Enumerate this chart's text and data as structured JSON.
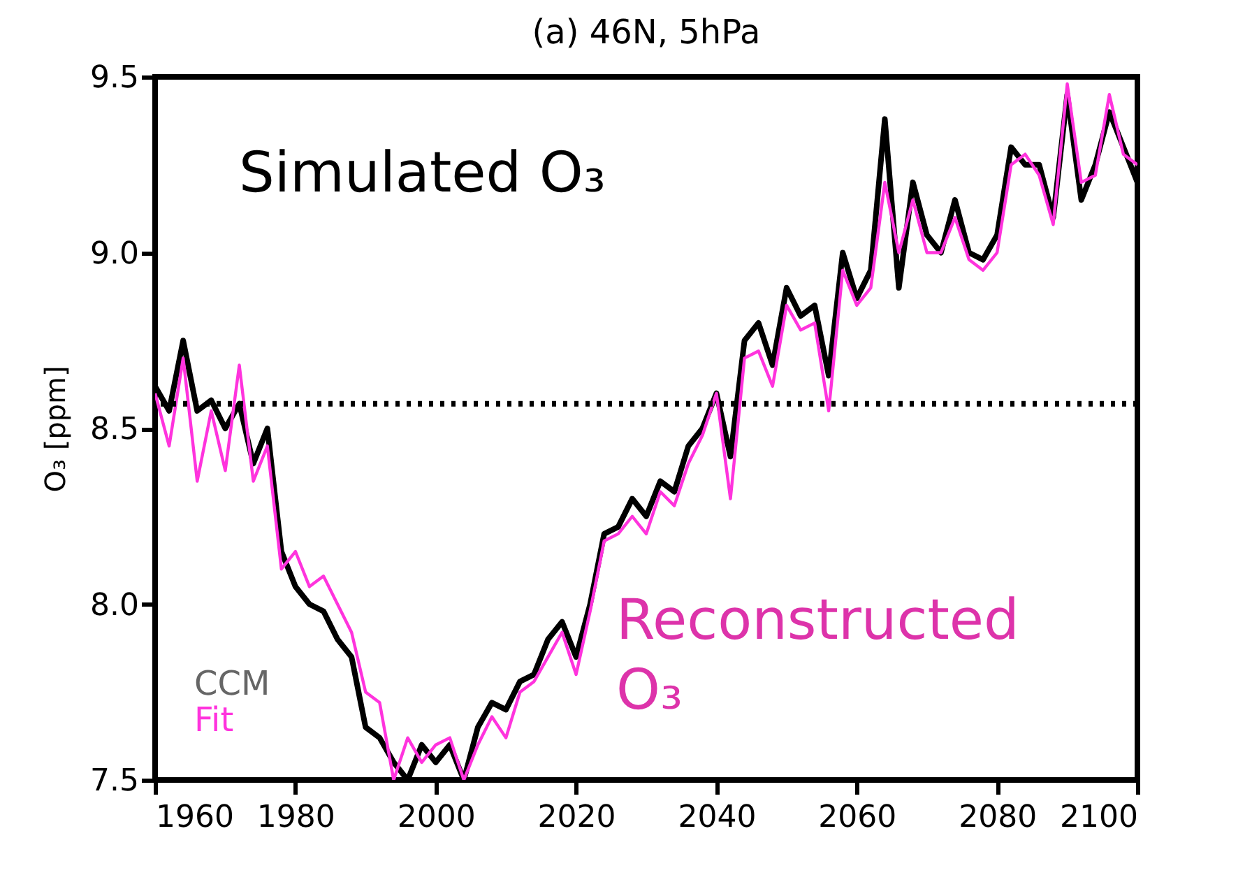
{
  "chart_data": {
    "type": "line",
    "title": "(a) 46N, 5hPa",
    "ylabel": "O₃ [ppm]",
    "x": [
      1960,
      1962,
      1964,
      1966,
      1968,
      1970,
      1972,
      1974,
      1976,
      1978,
      1980,
      1982,
      1984,
      1986,
      1988,
      1990,
      1992,
      1994,
      1996,
      1998,
      2000,
      2002,
      2004,
      2006,
      2008,
      2010,
      2012,
      2014,
      2016,
      2018,
      2020,
      2022,
      2024,
      2026,
      2028,
      2030,
      2032,
      2034,
      2036,
      2038,
      2040,
      2042,
      2044,
      2046,
      2048,
      2050,
      2052,
      2054,
      2056,
      2058,
      2060,
      2062,
      2064,
      2066,
      2068,
      2070,
      2072,
      2074,
      2076,
      2078,
      2080,
      2082,
      2084,
      2086,
      2088,
      2090,
      2092,
      2094,
      2096,
      2098,
      2100
    ],
    "series": [
      {
        "name": "CCM",
        "color": "#000000",
        "values": [
          8.62,
          8.55,
          8.75,
          8.55,
          8.58,
          8.5,
          8.57,
          8.4,
          8.5,
          8.15,
          8.05,
          8.0,
          7.98,
          7.9,
          7.85,
          7.65,
          7.62,
          7.55,
          7.5,
          7.6,
          7.55,
          7.6,
          7.5,
          7.65,
          7.72,
          7.7,
          7.78,
          7.8,
          7.9,
          7.95,
          7.85,
          8.0,
          8.2,
          8.22,
          8.3,
          8.25,
          8.35,
          8.32,
          8.45,
          8.5,
          8.6,
          8.42,
          8.75,
          8.8,
          8.68,
          8.9,
          8.82,
          8.85,
          8.65,
          9.0,
          8.87,
          8.95,
          9.38,
          8.9,
          9.2,
          9.05,
          9.0,
          9.15,
          9.0,
          8.98,
          9.05,
          9.3,
          9.25,
          9.25,
          9.1,
          9.45,
          9.15,
          9.25,
          9.4,
          9.3,
          9.2
        ]
      },
      {
        "name": "Fit",
        "color": "#ff33dd",
        "values": [
          8.6,
          8.45,
          8.7,
          8.35,
          8.55,
          8.38,
          8.68,
          8.35,
          8.45,
          8.1,
          8.15,
          8.05,
          8.08,
          8.0,
          7.92,
          7.75,
          7.72,
          7.5,
          7.62,
          7.55,
          7.6,
          7.62,
          7.5,
          7.6,
          7.68,
          7.62,
          7.75,
          7.78,
          7.85,
          7.92,
          7.8,
          7.98,
          8.18,
          8.2,
          8.25,
          8.2,
          8.32,
          8.28,
          8.4,
          8.48,
          8.6,
          8.3,
          8.7,
          8.72,
          8.62,
          8.85,
          8.78,
          8.8,
          8.55,
          8.95,
          8.85,
          8.9,
          9.2,
          9.0,
          9.15,
          9.0,
          9.0,
          9.1,
          8.98,
          8.95,
          9.0,
          9.25,
          9.28,
          9.22,
          9.08,
          9.48,
          9.2,
          9.22,
          9.45,
          9.28,
          9.25
        ]
      }
    ],
    "xlim": [
      1960,
      2100
    ],
    "xticks": [
      1960,
      1980,
      2000,
      2020,
      2040,
      2060,
      2080,
      2100
    ],
    "ylim": [
      7.5,
      9.5
    ],
    "yticks": [
      {
        "value": 7.5,
        "label": "7.5"
      },
      {
        "value": 8,
        "label": "8.0"
      },
      {
        "value": 8.5,
        "label": "8.5"
      },
      {
        "value": 9,
        "label": "9.0"
      },
      {
        "value": 9.5,
        "label": "9.5"
      }
    ],
    "ref_lines": [
      {
        "axis": "y",
        "value": 8.57,
        "color": "#000000",
        "line_style": "dotted"
      }
    ],
    "annotations": [
      "Simulated O₃",
      "Reconstructed O₃"
    ],
    "legend": "bottom left"
  }
}
